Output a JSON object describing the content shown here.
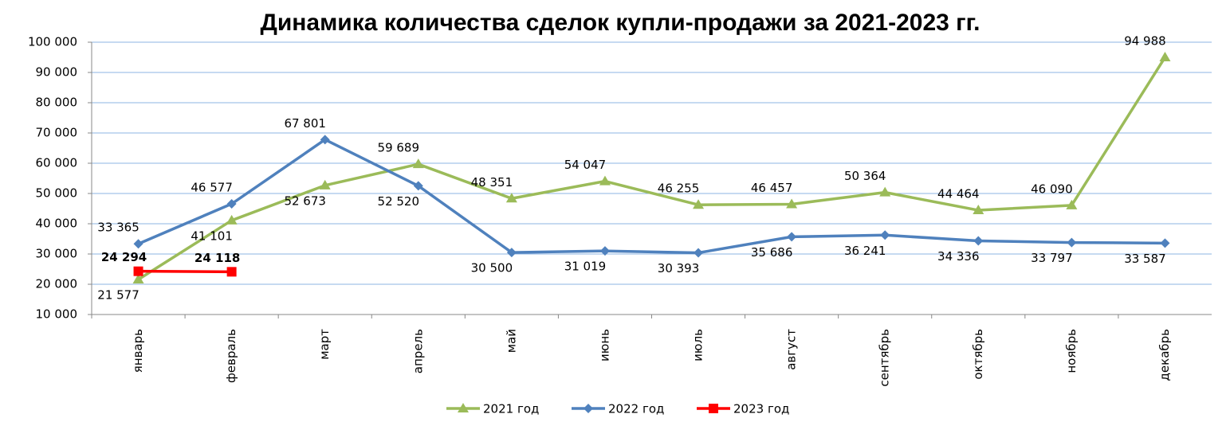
{
  "chart_data": {
    "type": "line",
    "title": "Динамика количества сделок купли-продажи за 2021-2023 гг.",
    "categories": [
      "январь",
      "февраль",
      "март",
      "апрель",
      "май",
      "июнь",
      "июль",
      "август",
      "сентябрь",
      "октябрь",
      "ноябрь",
      "декабрь"
    ],
    "series": [
      {
        "name": "2021 год",
        "color": "#9bbb59",
        "marker": "triangle",
        "values": [
          21577,
          41101,
          52673,
          59689,
          48351,
          54047,
          46255,
          46457,
          50364,
          44464,
          46090,
          94988
        ],
        "value_labels": [
          "21 577",
          "41 101",
          "52 673",
          "59 689",
          "48 351",
          "54 047",
          "46 255",
          "46 457",
          "50 364",
          "44 464",
          "46 090",
          "94 988"
        ]
      },
      {
        "name": "2022 год",
        "color": "#4f81bd",
        "marker": "diamond",
        "values": [
          33365,
          46577,
          67801,
          52520,
          30500,
          31019,
          30393,
          35686,
          36241,
          34336,
          33797,
          33587
        ],
        "value_labels": [
          "33 365",
          "46 577",
          "67 801",
          "52 520",
          "30 500",
          "31 019",
          "30 393",
          "35 686",
          "36 241",
          "34 336",
          "33 797",
          "33 587"
        ]
      },
      {
        "name": "2023 год",
        "color": "#ff0000",
        "marker": "square",
        "values": [
          24294,
          24118,
          null,
          null,
          null,
          null,
          null,
          null,
          null,
          null,
          null,
          null
        ],
        "value_labels": [
          "24 294",
          "24 118",
          null,
          null,
          null,
          null,
          null,
          null,
          null,
          null,
          null,
          null
        ]
      }
    ],
    "ylim": [
      10000,
      100000
    ],
    "yticks": [
      {
        "value": 10000,
        "label": "10 000"
      },
      {
        "value": 20000,
        "label": "20 000"
      },
      {
        "value": 30000,
        "label": "30 000"
      },
      {
        "value": 40000,
        "label": "40 000"
      },
      {
        "value": 50000,
        "label": "50 000"
      },
      {
        "value": 60000,
        "label": "60 000"
      },
      {
        "value": 70000,
        "label": "70 000"
      },
      {
        "value": 80000,
        "label": "80 000"
      },
      {
        "value": 90000,
        "label": "90 000"
      },
      {
        "value": 100000,
        "label": "100 000"
      }
    ],
    "grid": true,
    "legend": "bottom"
  }
}
